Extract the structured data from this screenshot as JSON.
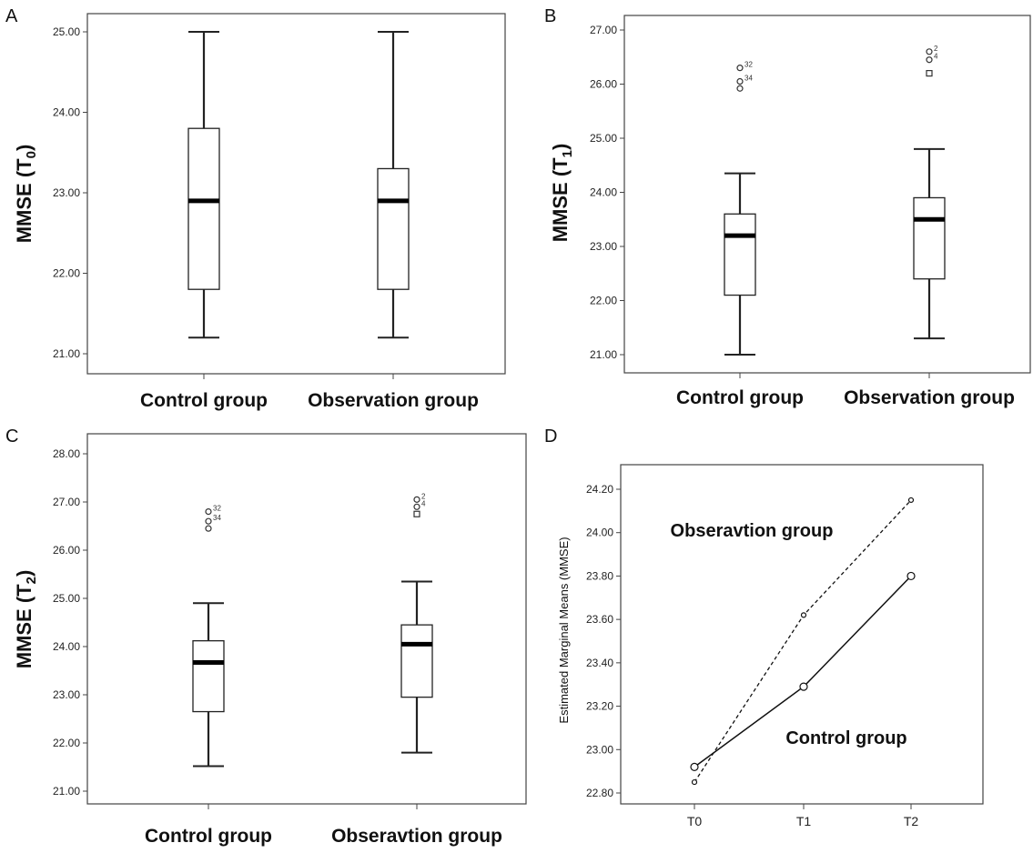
{
  "chart_data": [
    {
      "panel": "A",
      "type": "box",
      "ylabel": "MMSE (T",
      "ylabel_sub": "0",
      "ylabel_close": ")",
      "ylim": [
        20.9,
        25.2
      ],
      "yticks": [
        21,
        22,
        23,
        24,
        25
      ],
      "ytick_labels": [
        "21.00",
        "22.00",
        "23.00",
        "24.00",
        "25.00"
      ],
      "categories": [
        "Control group",
        "Observation group"
      ],
      "boxes": [
        {
          "min": 21.2,
          "q1": 21.8,
          "median": 22.9,
          "q3": 23.8,
          "max": 25.0,
          "outliers": []
        },
        {
          "min": 21.2,
          "q1": 21.8,
          "median": 22.9,
          "q3": 23.3,
          "max": 25.0,
          "outliers": []
        }
      ]
    },
    {
      "panel": "B",
      "type": "box",
      "ylabel": "MMSE (T",
      "ylabel_sub": "1",
      "ylabel_close": ")",
      "ylim": [
        20.7,
        27.1
      ],
      "yticks": [
        21,
        22,
        23,
        24,
        25,
        26,
        27
      ],
      "ytick_labels": [
        "21.00",
        "22.00",
        "23.00",
        "24.00",
        "25.00",
        "26.00",
        "27.00"
      ],
      "categories": [
        "Control group",
        "Observation group"
      ],
      "boxes": [
        {
          "min": 21.0,
          "q1": 22.1,
          "median": 23.2,
          "q3": 23.6,
          "max": 24.35,
          "outliers": [
            {
              "value": 26.3,
              "label": "32",
              "style": "circle"
            },
            {
              "value": 26.05,
              "label": "34",
              "style": "circle"
            },
            {
              "value": 25.92,
              "label": "",
              "style": "circle"
            }
          ]
        },
        {
          "min": 21.3,
          "q1": 22.4,
          "median": 23.5,
          "q3": 23.9,
          "max": 24.8,
          "outliers": [
            {
              "value": 26.6,
              "label": "2",
              "style": "circle"
            },
            {
              "value": 26.45,
              "label": "4",
              "style": "circle"
            },
            {
              "value": 26.2,
              "label": "",
              "style": "square"
            }
          ]
        }
      ]
    },
    {
      "panel": "C",
      "type": "box",
      "ylabel": "MMSE (T",
      "ylabel_sub": "2",
      "ylabel_close": ")",
      "ylim": [
        20.8,
        28.2
      ],
      "yticks": [
        21,
        22,
        23,
        24,
        25,
        26,
        27,
        28
      ],
      "ytick_labels": [
        "21.00",
        "22.00",
        "23.00",
        "24.00",
        "25.00",
        "26.00",
        "27.00",
        "28.00"
      ],
      "categories": [
        "Control group",
        "Obseravtion group"
      ],
      "boxes": [
        {
          "min": 21.52,
          "q1": 22.65,
          "median": 23.67,
          "q3": 24.12,
          "max": 24.9,
          "outliers": [
            {
              "value": 26.8,
              "label": "32",
              "style": "circle"
            },
            {
              "value": 26.6,
              "label": "34",
              "style": "circle"
            },
            {
              "value": 26.45,
              "label": "",
              "style": "circle"
            }
          ]
        },
        {
          "min": 21.8,
          "q1": 22.95,
          "median": 24.05,
          "q3": 24.45,
          "max": 25.35,
          "outliers": [
            {
              "value": 27.05,
              "label": "2",
              "style": "circle"
            },
            {
              "value": 26.9,
              "label": "4",
              "style": "circle"
            },
            {
              "value": 26.75,
              "label": "",
              "style": "square"
            }
          ]
        }
      ]
    },
    {
      "panel": "D",
      "type": "line",
      "ylabel": "Estimated Marginal Means (MMSE)",
      "ylim": [
        22.76,
        24.27
      ],
      "yticks": [
        22.8,
        23.0,
        23.2,
        23.4,
        23.6,
        23.8,
        24.0,
        24.2
      ],
      "ytick_labels": [
        "22.80",
        "23.00",
        "23.20",
        "23.40",
        "23.60",
        "23.80",
        "24.00",
        "24.20"
      ],
      "categories": [
        "T0",
        "T1",
        "T2"
      ],
      "series": [
        {
          "name": "Obseravtion group",
          "values": [
            22.85,
            23.62,
            24.15
          ],
          "dash": "dashed"
        },
        {
          "name": "Control group",
          "values": [
            22.92,
            23.29,
            23.8
          ],
          "dash": "solid"
        }
      ]
    }
  ]
}
